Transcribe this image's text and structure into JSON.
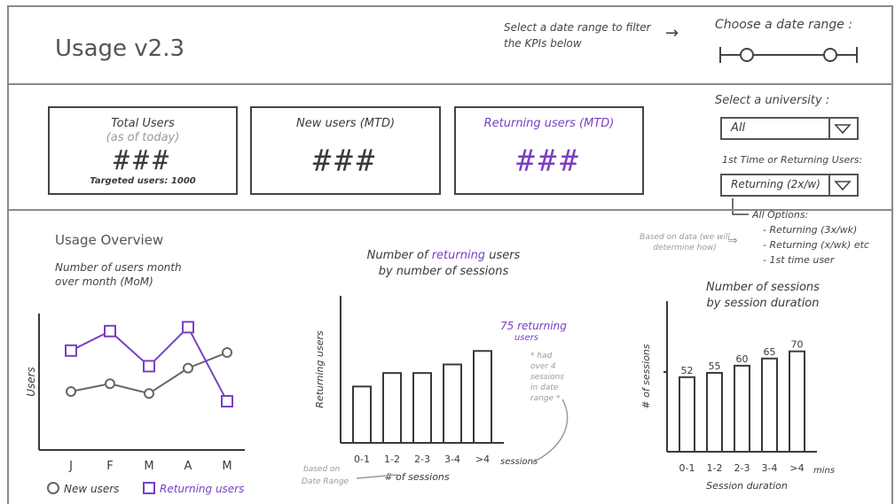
{
  "header": {
    "title": "Usage v2.3",
    "note": "Select a date range to filter the KPIs below",
    "note_arrow": "→",
    "date_range_label": "Choose a date range :"
  },
  "kpis": [
    {
      "title": "Total Users",
      "subtitle": "(as of today)",
      "value": "###",
      "footer": "Targeted users: 1000"
    },
    {
      "title": "New users (MTD)",
      "value": "###"
    },
    {
      "title": "Returning users (MTD)",
      "value": "###"
    }
  ],
  "filters": {
    "university_label": "Select a university :",
    "university_value": "All",
    "user_type_label": "1st Time or Returning Users:",
    "user_type_value": "Returning (2x/w)",
    "options_title": "All Options:",
    "options": [
      "- Returning (3x/wk)",
      "- Returning (x/wk) etc",
      "- 1st time user"
    ],
    "options_note": "Based on data (we will determine how)"
  },
  "overview": {
    "title": "Usage Overview",
    "subtitle": "Number of users month over month (MoM)"
  },
  "colors": {
    "accent": "#7a3fc4",
    "ink": "#3a3a3a",
    "frame": "#8a8a8a",
    "note": "#9a9a9a"
  },
  "chart_data": [
    {
      "type": "line",
      "title": "",
      "xlabel": "",
      "ylabel": "Users",
      "categories": [
        "J",
        "F",
        "M",
        "A",
        "M"
      ],
      "series": [
        {
          "name": "New users",
          "values": [
            3,
            3.4,
            2.9,
            4.2,
            5.0
          ]
        },
        {
          "name": "Returning users",
          "values": [
            5.1,
            6.1,
            4.3,
            6.3,
            2.5
          ]
        }
      ],
      "legend": "bottom"
    },
    {
      "type": "bar",
      "title": "Number of returning users by number of sessions",
      "xlabel": "# of sessions",
      "ylabel": "Returning users",
      "categories": [
        "0-1",
        "1-2",
        "2-3",
        "3-4",
        ">4"
      ],
      "values": [
        46,
        57,
        57,
        64,
        75
      ],
      "ylim": [
        0,
        120
      ],
      "annotation": "75 returning users",
      "annotation_note": "* had over 4 sessions in date range *",
      "axis_suffix": "sessions",
      "axis_note": "based on Date Range"
    },
    {
      "type": "bar",
      "title": "Number of sessions by session duration",
      "xlabel": "Session duration",
      "ylabel": "# of sessions",
      "categories": [
        "0-1",
        "1-2",
        "2-3",
        "3-4",
        ">4"
      ],
      "values": [
        52,
        55,
        60,
        65,
        70
      ],
      "ylim": [
        0,
        105
      ],
      "axis_suffix": "mins"
    }
  ]
}
